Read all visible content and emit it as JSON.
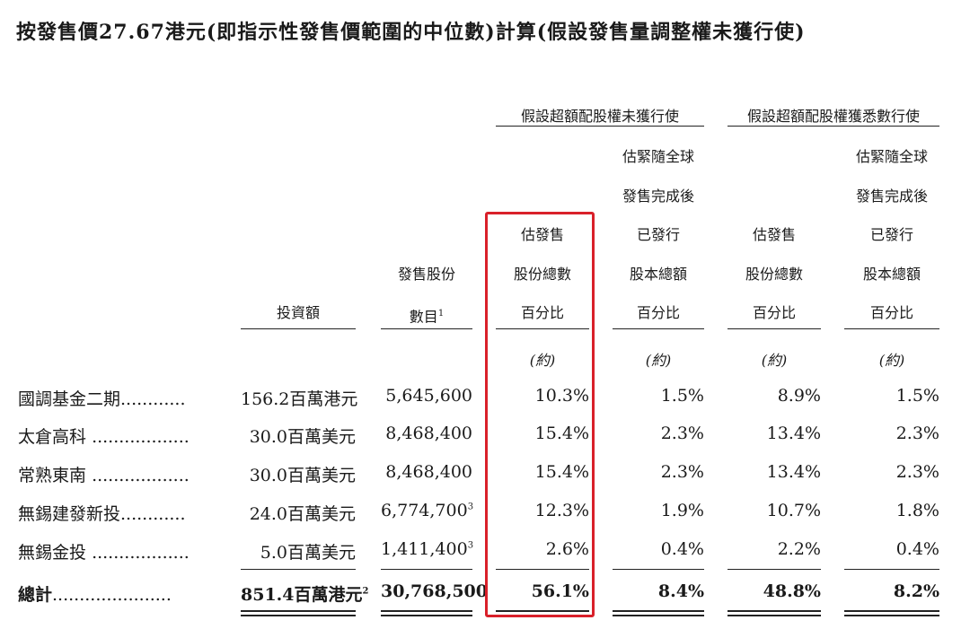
{
  "title": "按發售價27.67港元(即指示性發售價範圍的中位數)計算(假設發售量調整權未獲行使)",
  "groups": {
    "not_exercised": "假設超額配股權未獲行使",
    "exercised": "假設超額配股權獲悉數行使"
  },
  "columns": {
    "investment": [
      "投資額"
    ],
    "shares": [
      "發售股份",
      "數目"
    ],
    "shares_footnote": "1",
    "pct_offer_a": [
      "估發售",
      "股份總數",
      "百分比"
    ],
    "pct_total_a": [
      "估緊隨全球",
      "發售完成後",
      "已發行",
      "股本總額",
      "百分比"
    ],
    "pct_offer_b": [
      "估發售",
      "股份總數",
      "百分比"
    ],
    "pct_total_b": [
      "估緊隨全球",
      "發售完成後",
      "已發行",
      "股本總額",
      "百分比"
    ]
  },
  "approx_label": "(約)",
  "rows": [
    {
      "name": "國調基金二期",
      "dots": "............",
      "investment": "156.2百萬港元",
      "inv_note": "",
      "shares": "5,645,600",
      "shares_note": "",
      "a1": "10.3%",
      "a2": "1.5%",
      "b1": "8.9%",
      "b2": "1.5%"
    },
    {
      "name": "太倉高科",
      "dots": "..................",
      "investment": "30.0百萬美元",
      "inv_note": "",
      "shares": "8,468,400",
      "shares_note": "",
      "a1": "15.4%",
      "a2": "2.3%",
      "b1": "13.4%",
      "b2": "2.3%"
    },
    {
      "name": "常熟東南",
      "dots": "..................",
      "investment": "30.0百萬美元",
      "inv_note": "",
      "shares": "8,468,400",
      "shares_note": "",
      "a1": "15.4%",
      "a2": "2.3%",
      "b1": "13.4%",
      "b2": "2.3%"
    },
    {
      "name": "無錫建發新投",
      "dots": "............",
      "investment": "24.0百萬美元",
      "inv_note": "",
      "shares": "6,774,700",
      "shares_note": "3",
      "a1": "12.3%",
      "a2": "1.9%",
      "b1": "10.7%",
      "b2": "1.8%"
    },
    {
      "name": "無錫金投",
      "dots": "..................",
      "investment": "5.0百萬美元",
      "inv_note": "",
      "shares": "1,411,400",
      "shares_note": "3",
      "a1": "2.6%",
      "a2": "0.4%",
      "b1": "2.2%",
      "b2": "0.4%"
    }
  ],
  "total": {
    "name": "總計",
    "dots": "......................",
    "investment": "851.4百萬港元",
    "inv_note": "2",
    "shares": "30,768,500",
    "shares_note": "",
    "a1": "56.1%",
    "a2": "8.4%",
    "b1": "48.8%",
    "b2": "8.2%"
  },
  "colors": {
    "highlight": "#d9202a",
    "text": "#1a1a1a",
    "rule": "#222222"
  }
}
